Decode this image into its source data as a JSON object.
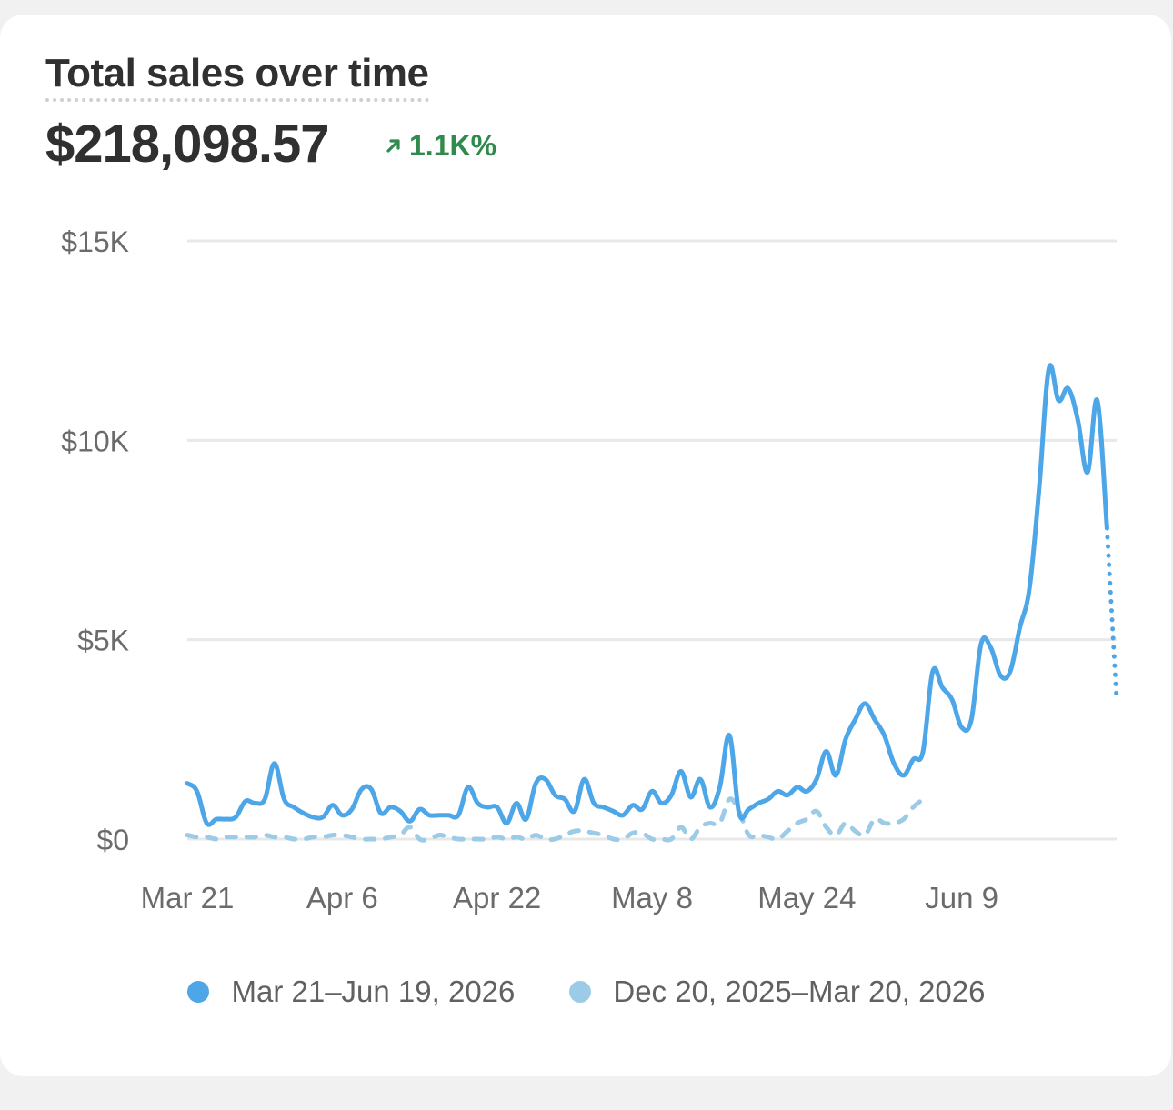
{
  "card": {
    "title": "Total sales over time",
    "total": "$218,098.57",
    "change": "1.1K%",
    "change_icon": "arrow-up-right-icon",
    "change_color": "#2f8a4c"
  },
  "colors": {
    "current": "#4da6e8",
    "previous": "#9ccbe8",
    "grid": "#e8e8e8",
    "axis_text": "#6b6b6b"
  },
  "chart_data": {
    "type": "line",
    "title": "Total sales over time",
    "xlabel": "",
    "ylabel": "",
    "ylim": [
      0,
      15000
    ],
    "y_ticks": [
      0,
      5000,
      10000,
      15000
    ],
    "y_tick_labels": [
      "$0",
      "$5K",
      "$10K",
      "$15K"
    ],
    "x_tick_labels": [
      "Mar 21",
      "Apr 6",
      "Apr 22",
      "May 8",
      "May 24",
      "Jun 9"
    ],
    "x_tick_indices": [
      0,
      16,
      32,
      48,
      64,
      80
    ],
    "grid": true,
    "legend": "bottom",
    "series": [
      {
        "name": "Mar 21–Jun 19, 2026",
        "style": "solid",
        "last_segment_dotted": true,
        "values": [
          1400,
          1200,
          400,
          500,
          500,
          550,
          950,
          900,
          1000,
          1900,
          1000,
          800,
          650,
          550,
          550,
          850,
          600,
          750,
          1250,
          1250,
          650,
          800,
          700,
          450,
          750,
          600,
          600,
          600,
          600,
          1300,
          900,
          800,
          800,
          400,
          900,
          500,
          1400,
          1500,
          1100,
          1000,
          700,
          1500,
          900,
          800,
          700,
          600,
          850,
          750,
          1200,
          900,
          1100,
          1700,
          1050,
          1500,
          800,
          1300,
          2600,
          650,
          750,
          900,
          1000,
          1200,
          1100,
          1300,
          1200,
          1500,
          2200,
          1600,
          2500,
          3000,
          3400,
          3000,
          2600,
          1900,
          1600,
          2000,
          2200,
          4200,
          3800,
          3500,
          2800,
          3000,
          4900,
          4800,
          4100,
          4200,
          5300,
          6300,
          8800,
          11800,
          11000,
          11300,
          10500,
          9200,
          11000,
          7800,
          3500
        ]
      },
      {
        "name": "Dec 20, 2025–Mar 20, 2026",
        "style": "dashed",
        "values": [
          100,
          50,
          50,
          0,
          50,
          50,
          50,
          50,
          100,
          50,
          50,
          0,
          0,
          50,
          50,
          100,
          100,
          50,
          0,
          0,
          0,
          50,
          100,
          300,
          0,
          0,
          100,
          50,
          0,
          0,
          0,
          0,
          50,
          0,
          50,
          0,
          100,
          0,
          0,
          100,
          200,
          200,
          150,
          100,
          0,
          0,
          150,
          150,
          0,
          0,
          0,
          300,
          0,
          300,
          400,
          400,
          1000,
          700,
          100,
          100,
          50,
          0,
          200,
          400,
          500,
          700,
          300,
          100,
          400,
          200,
          100,
          500,
          400,
          400,
          500,
          800,
          1000
        ]
      }
    ]
  }
}
